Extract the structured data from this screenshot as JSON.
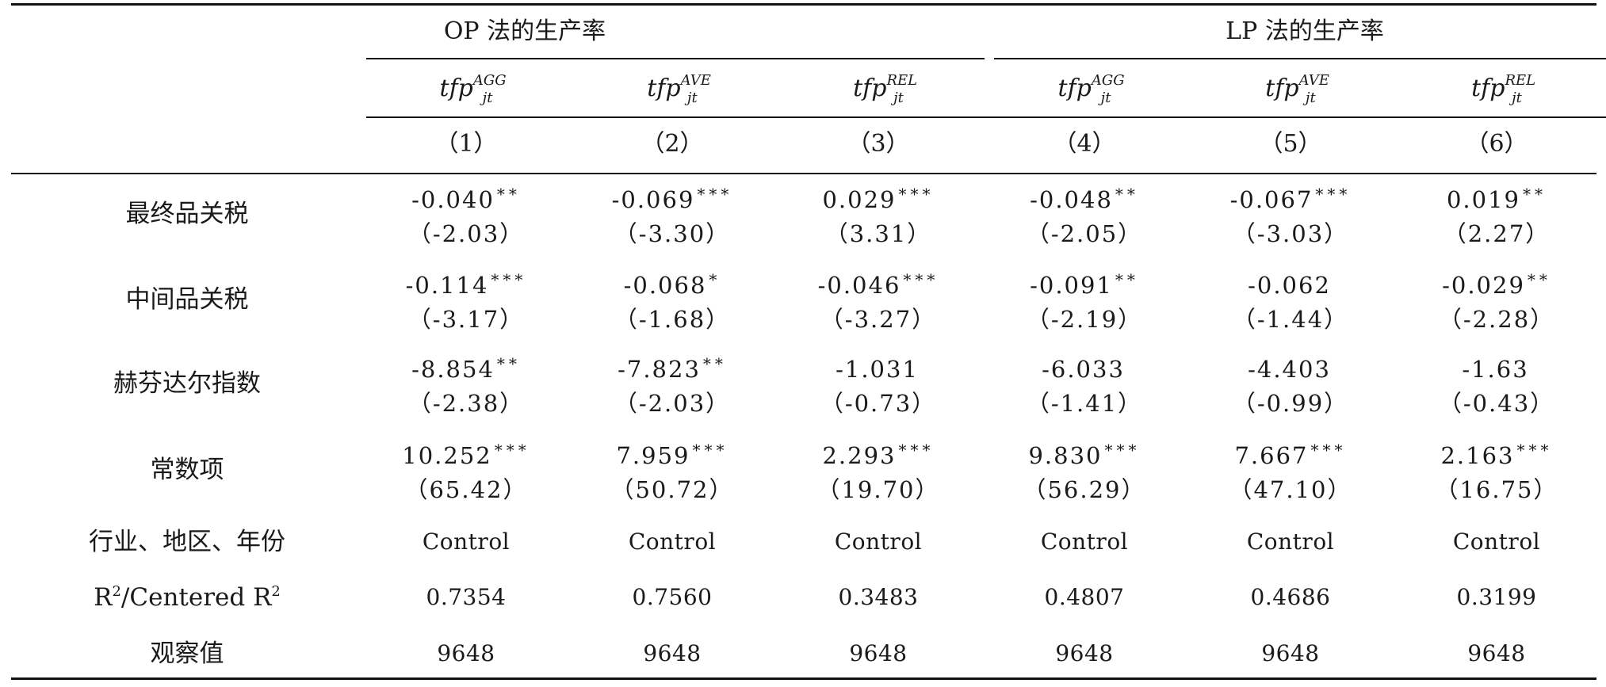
{
  "header": {
    "groups": [
      "OP 法的生产率",
      "LP 法的生产率"
    ],
    "variables": [
      {
        "base": "tfp",
        "sub": "jt",
        "sup": "AGG"
      },
      {
        "base": "tfp",
        "sub": "jt",
        "sup": "AVE"
      },
      {
        "base": "tfp",
        "sub": "jt",
        "sup": "REL"
      },
      {
        "base": "tfp",
        "sub": "jt",
        "sup": "AGG"
      },
      {
        "base": "tfp",
        "sub": "jt",
        "sup": "AVE"
      },
      {
        "base": "tfp",
        "sub": "jt",
        "sup": "REL"
      }
    ],
    "col_numbers": [
      "（1）",
      "（2）",
      "（3）",
      "（4）",
      "（5）",
      "（6）"
    ]
  },
  "rows": [
    {
      "label": "最终品关税",
      "cells": [
        {
          "coef": "-0.040",
          "stars": "**",
          "t": "（-2.03）"
        },
        {
          "coef": "-0.069",
          "stars": "***",
          "t": "（-3.30）"
        },
        {
          "coef": "0.029",
          "stars": "***",
          "t": "（3.31）"
        },
        {
          "coef": "-0.048",
          "stars": "**",
          "t": "（-2.05）"
        },
        {
          "coef": "-0.067",
          "stars": "***",
          "t": "（-3.03）"
        },
        {
          "coef": "0.019",
          "stars": "**",
          "t": "（2.27）"
        }
      ]
    },
    {
      "label": "中间品关税",
      "cells": [
        {
          "coef": "-0.114",
          "stars": "***",
          "t": "（-3.17）"
        },
        {
          "coef": "-0.068",
          "stars": "*",
          "t": "（-1.68）"
        },
        {
          "coef": "-0.046",
          "stars": "***",
          "t": "（-3.27）"
        },
        {
          "coef": "-0.091",
          "stars": "**",
          "t": "（-2.19）"
        },
        {
          "coef": "-0.062",
          "stars": "",
          "t": "（-1.44）"
        },
        {
          "coef": "-0.029",
          "stars": "**",
          "t": "（-2.28）"
        }
      ]
    },
    {
      "label": "赫芬达尔指数",
      "cells": [
        {
          "coef": "-8.854",
          "stars": "**",
          "t": "（-2.38）"
        },
        {
          "coef": "-7.823",
          "stars": "**",
          "t": "（-2.03）"
        },
        {
          "coef": "-1.031",
          "stars": "",
          "t": "（-0.73）"
        },
        {
          "coef": "-6.033",
          "stars": "",
          "t": "（-1.41）"
        },
        {
          "coef": "-4.403",
          "stars": "",
          "t": "（-0.99）"
        },
        {
          "coef": "-1.63",
          "stars": "",
          "t": "（-0.43）"
        }
      ]
    },
    {
      "label": "常数项",
      "cells": [
        {
          "coef": "10.252",
          "stars": "***",
          "t": "（65.42）"
        },
        {
          "coef": "7.959",
          "stars": "***",
          "t": "（50.72）"
        },
        {
          "coef": "2.293",
          "stars": "***",
          "t": "（19.70）"
        },
        {
          "coef": "9.830",
          "stars": "***",
          "t": "（56.29）"
        },
        {
          "coef": "7.667",
          "stars": "***",
          "t": "（47.10）"
        },
        {
          "coef": "2.163",
          "stars": "***",
          "t": "（16.75）"
        }
      ]
    }
  ],
  "controls": {
    "label": "行业、地区、年份",
    "values": [
      "Control",
      "Control",
      "Control",
      "Control",
      "Control",
      "Control"
    ]
  },
  "r2": {
    "label_a": "R",
    "label_sup": "2",
    "label_mid": "/Centered R",
    "label_sup2": "2",
    "values": [
      "0.7354",
      "0.7560",
      "0.3483",
      "0.4807",
      "0.4686",
      "0.3199"
    ]
  },
  "obs": {
    "label": "观察值",
    "values": [
      "9648",
      "9648",
      "9648",
      "9648",
      "9648",
      "9648"
    ]
  }
}
